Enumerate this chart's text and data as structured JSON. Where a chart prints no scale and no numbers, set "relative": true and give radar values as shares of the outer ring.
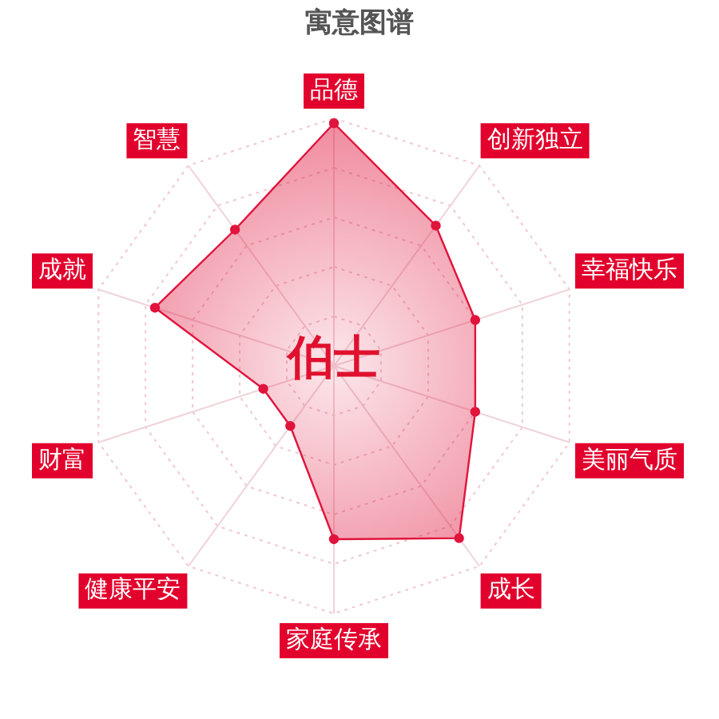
{
  "chart_data": {
    "type": "radar",
    "title": "寓意图谱",
    "categories": [
      "品德",
      "创新独立",
      "幸福快乐",
      "美丽气质",
      "成长",
      "家庭传承",
      "健康平安",
      "财富",
      "成就",
      "智慧"
    ],
    "relative": true,
    "series": [
      {
        "color": "#e0143c",
        "values": [
          0.98,
          0.7,
          0.6,
          0.6,
          0.86,
          0.7,
          0.3,
          0.3,
          0.76,
          0.68
        ]
      }
    ],
    "annotations": [
      "伯士"
    ],
    "grid": true,
    "legend": false,
    "marker": "circle"
  }
}
